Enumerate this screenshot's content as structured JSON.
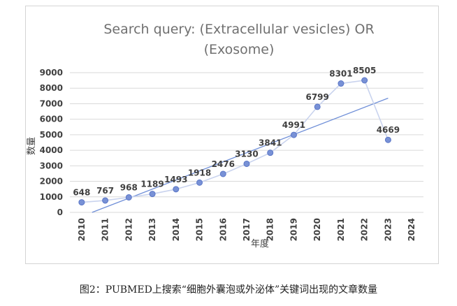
{
  "chart_data": {
    "type": "line",
    "title_lines": [
      "Search query: (Extracellular vesicles) OR",
      "(Exosome)"
    ],
    "xlabel": "年度",
    "ylabel": "数量",
    "x_categories": [
      "2010",
      "2011",
      "2012",
      "2013",
      "2014",
      "2015",
      "2016",
      "2017",
      "2018",
      "2019",
      "2020",
      "2021",
      "2022",
      "2023",
      "2024"
    ],
    "x": [
      "2010",
      "2011",
      "2012",
      "2013",
      "2014",
      "2015",
      "2016",
      "2017",
      "2018",
      "2019",
      "2020",
      "2021",
      "2022",
      "2023"
    ],
    "series": [
      {
        "values": [
          648,
          767,
          968,
          1189,
          1493,
          1918,
          2476,
          3130,
          3841,
          4991,
          6799,
          8301,
          8505,
          4669
        ]
      }
    ],
    "trendline": {
      "kind": "linear"
    },
    "ylim": [
      0,
      9000
    ],
    "yticks": [
      0,
      1000,
      2000,
      3000,
      4000,
      5000,
      6000,
      7000,
      8000,
      9000
    ],
    "grid": true,
    "legend": "none",
    "colors": {
      "line": "#c9d3ee",
      "marker": "#7891d6",
      "marker_edge": "#5a76c7",
      "trend": "#6f8fd8",
      "grid": "#d9d9d9",
      "text": "#404040",
      "title": "#707070"
    }
  },
  "caption": "图2：PUBMED上搜索“细胞外囊泡或外泌体”关键词出现的文章数量"
}
